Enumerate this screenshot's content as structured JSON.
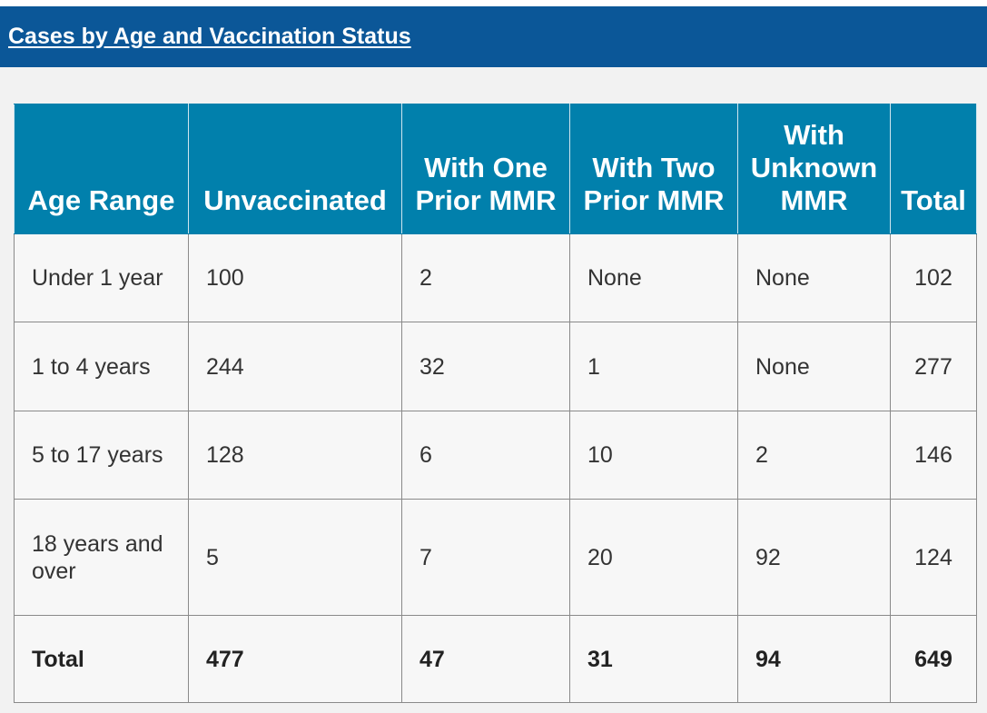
{
  "header": {
    "title": "Cases by Age and Vaccination Status"
  },
  "table": {
    "columns": [
      "Age Range",
      "Unvaccinated",
      "With One Prior MMR",
      "With Two Prior MMR",
      "With Unknown MMR",
      "Total"
    ],
    "rows": [
      [
        "Under 1 year",
        "100",
        "2",
        "None",
        "None",
        "102"
      ],
      [
        "1 to 4 years",
        "244",
        "32",
        "1",
        "None",
        "277"
      ],
      [
        "5 to 17 years",
        "128",
        "6",
        "10",
        "2",
        "146"
      ],
      [
        "18 years and over",
        "5",
        "7",
        "20",
        "92",
        "124"
      ]
    ],
    "total_row": [
      "Total",
      "477",
      "47",
      "31",
      "94",
      "649"
    ]
  },
  "colors": {
    "header_bar": "#0b5798",
    "table_header": "#0180ac",
    "page_background": "#f2f2f2",
    "cell_background": "#f7f7f7"
  }
}
